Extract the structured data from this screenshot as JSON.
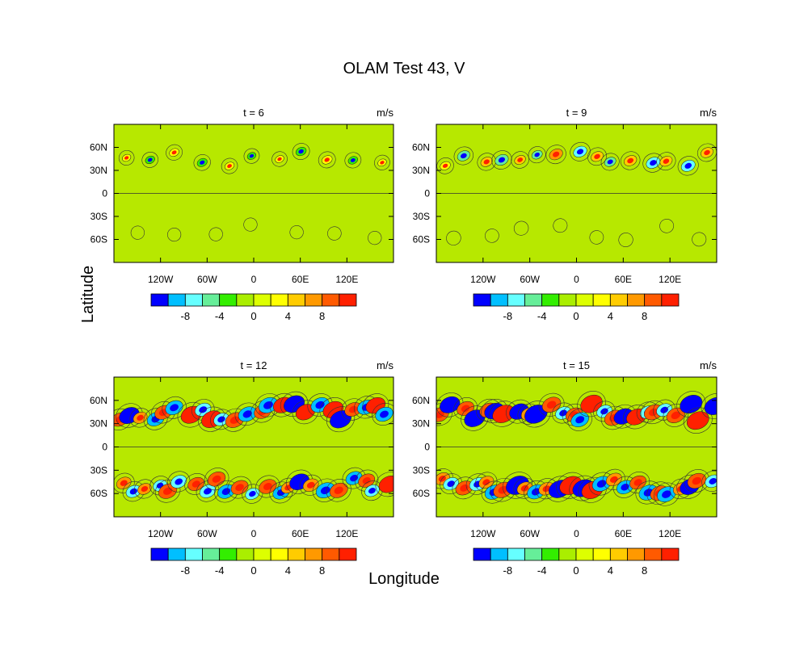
{
  "figure_title": "OLAM Test 43, V",
  "ylabel": "Latitude",
  "xlabel": "Longitude",
  "units": "m/s",
  "lon_ticks": [
    "120W",
    "60W",
    "0",
    "60E",
    "120E"
  ],
  "lat_ticks": [
    "60N",
    "30N",
    "0",
    "30S",
    "60S"
  ],
  "colorbar": {
    "levels": [
      -12,
      -10,
      -8,
      -6,
      -4,
      -2,
      0,
      2,
      4,
      6,
      8,
      10,
      12
    ],
    "labels": [
      "-8",
      "-4",
      "0",
      "4",
      "8"
    ],
    "colors": [
      "#0000ff",
      "#00bfff",
      "#66ffff",
      "#66ee99",
      "#33ee00",
      "#aaee00",
      "#ddff00",
      "#ffff00",
      "#ffcc00",
      "#ff9900",
      "#ff5a00",
      "#ff2000"
    ]
  },
  "background_color": "#b7e800",
  "chart_data": [
    {
      "type": "heatmap",
      "title": "t = 6",
      "units": "m/s",
      "xlim": [
        -180,
        180
      ],
      "ylim": [
        -90,
        90
      ],
      "activity_nh": 0.25,
      "activity_sh": 0.05
    },
    {
      "type": "heatmap",
      "title": "t = 9",
      "units": "m/s",
      "xlim": [
        -180,
        180
      ],
      "ylim": [
        -90,
        90
      ],
      "activity_nh": 0.45,
      "activity_sh": 0.1
    },
    {
      "type": "heatmap",
      "title": "t = 12",
      "units": "m/s",
      "xlim": [
        -180,
        180
      ],
      "ylim": [
        -90,
        90
      ],
      "activity_nh": 0.9,
      "activity_sh": 0.85
    },
    {
      "type": "heatmap",
      "title": "t = 15",
      "units": "m/s",
      "xlim": [
        -180,
        180
      ],
      "ylim": [
        -90,
        90
      ],
      "activity_nh": 1.0,
      "activity_sh": 1.0
    }
  ]
}
